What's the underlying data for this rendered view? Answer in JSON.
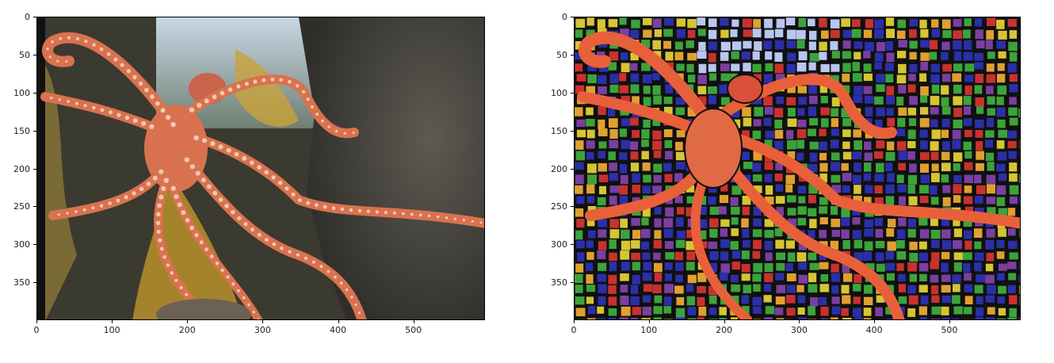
{
  "figure": {
    "panels": [
      {
        "name": "original-photo",
        "image_description_icon": "octopus-photo-icon",
        "x_ticks": [
          "0",
          "100",
          "200",
          "300",
          "400",
          "500"
        ],
        "y_ticks": [
          "0",
          "50",
          "100",
          "150",
          "200",
          "250",
          "300",
          "350"
        ],
        "colors": {
          "background": "#3a3a30",
          "rock": "#4c4a44",
          "kelp": "#b8902a",
          "water": "#9fb4c6",
          "octopus": "#d9724e",
          "suckers": "#f1c9b4"
        }
      },
      {
        "name": "stylized-mosaic",
        "image_description_icon": "octopus-mosaic-icon",
        "x_ticks": [
          "0",
          "100",
          "200",
          "300",
          "400",
          "500"
        ],
        "y_ticks": [
          "0",
          "50",
          "100",
          "150",
          "200",
          "250",
          "300",
          "350"
        ],
        "colors": {
          "tile_green": "#3ca33a",
          "tile_blue": "#2b2fa8",
          "tile_red": "#c8322e",
          "tile_yellow": "#d6c533",
          "grout": "#101010",
          "octopus": "#e8603a"
        }
      }
    ]
  }
}
